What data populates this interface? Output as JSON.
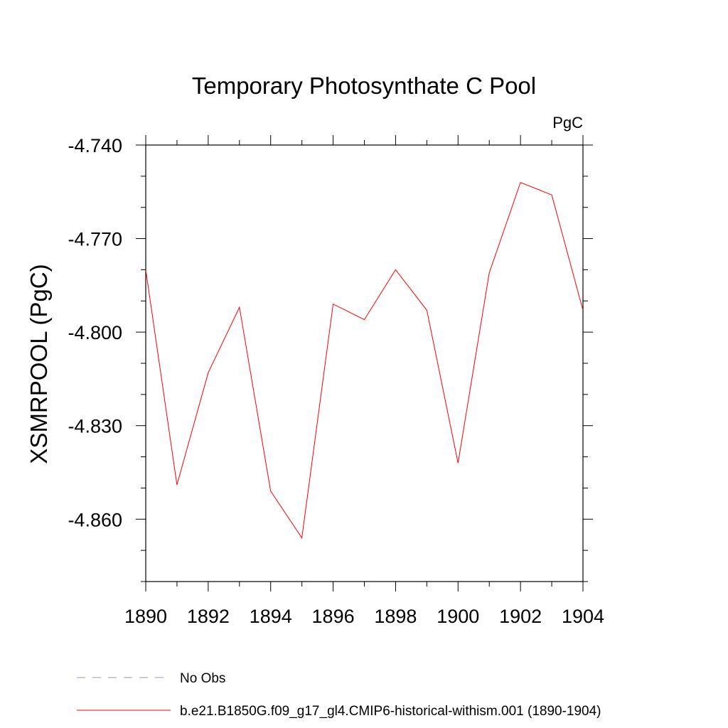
{
  "chart_data": {
    "type": "line",
    "title": "Temporary Photosynthate C Pool",
    "units_label": "PgC",
    "xlabel": "",
    "ylabel": "XSMRPOOL  (PgC)",
    "xlim": [
      1890,
      1904
    ],
    "ylim": [
      -4.88,
      -4.74
    ],
    "x_ticks": [
      1890,
      1892,
      1894,
      1896,
      1898,
      1900,
      1902,
      1904
    ],
    "x_tick_labels": [
      "1890",
      "1892",
      "1894",
      "1896",
      "1898",
      "1900",
      "1902",
      "1904"
    ],
    "y_ticks": [
      -4.74,
      -4.77,
      -4.8,
      -4.83,
      -4.86
    ],
    "y_tick_labels": [
      "-4.740",
      "-4.770",
      "-4.800",
      "-4.830",
      "-4.860"
    ],
    "grid": false,
    "legend_position": "bottom-left",
    "series": [
      {
        "name": "b.e21.B1850G.f09_g17_gl4.CMIP6-historical-withism.001 (1890-1904)",
        "color": "#ff0000",
        "style": "solid",
        "x": [
          1890,
          1891,
          1892,
          1893,
          1894,
          1895,
          1896,
          1897,
          1898,
          1899,
          1900,
          1901,
          1902,
          1903,
          1904
        ],
        "values": [
          -4.78,
          -4.849,
          -4.813,
          -4.792,
          -4.851,
          -4.866,
          -4.791,
          -4.796,
          -4.78,
          -4.793,
          -4.842,
          -4.781,
          -4.752,
          -4.756,
          -4.793
        ]
      },
      {
        "name": "No Obs",
        "color": "#9a8fd6",
        "style": "dashed",
        "x": [],
        "values": []
      }
    ]
  }
}
